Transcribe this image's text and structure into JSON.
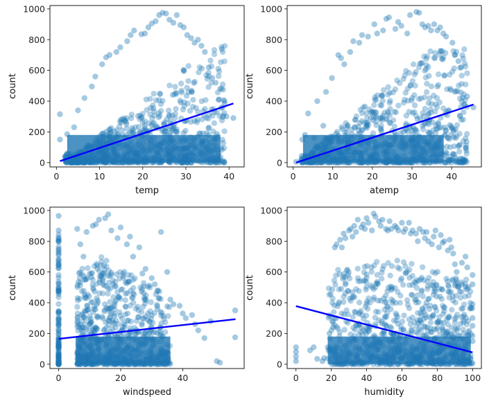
{
  "chart_data": [
    {
      "type": "scatter",
      "xlabel": "temp",
      "ylabel": "count",
      "xlim": [
        -1.5,
        43.5
      ],
      "ylim": [
        -28,
        1022
      ],
      "xticks": [
        0,
        10,
        20,
        30,
        40
      ],
      "yticks": [
        0,
        200,
        400,
        600,
        800,
        1000
      ],
      "point_color": "#1f77b4",
      "regression_color": "#0000ff",
      "regression": {
        "x": [
          0.82,
          41.0
        ],
        "y": [
          10,
          385
        ]
      },
      "points": {
        "x": [
          0.82,
          0.82,
          2.5,
          2.5,
          4.1,
          5.0,
          6.5,
          8.2,
          9.0,
          10.6,
          11.5,
          12.3,
          13.9,
          14.8,
          16.4,
          17.2,
          18.0,
          19.7,
          20.5,
          21.3,
          22.1,
          23.0,
          23.8,
          24.6,
          25.4,
          26.2,
          27.1,
          27.9,
          28.7,
          29.5,
          30.3,
          31.2,
          32.0,
          32.8,
          33.6,
          34.4,
          35.3,
          36.1,
          36.9,
          37.7,
          38.5,
          39.4,
          41.0,
          24.6,
          26.2,
          28.7,
          30.3,
          21.3,
          19.7,
          15.6,
          13.1,
          10.7,
          9.8,
          8.2,
          7.4,
          5.7,
          4.9,
          3.3
        ],
        "y": [
          150,
          315,
          60,
          185,
          230,
          340,
          420,
          495,
          560,
          640,
          685,
          700,
          720,
          750,
          790,
          830,
          860,
          835,
          840,
          880,
          905,
          920,
          960,
          975,
          970,
          930,
          910,
          960,
          895,
          880,
          830,
          810,
          780,
          800,
          760,
          720,
          620,
          550,
          520,
          410,
          360,
          300,
          290,
          15,
          5,
          10,
          20,
          12,
          8,
          3,
          6,
          4,
          10,
          2,
          7,
          5,
          9,
          3
        ]
      }
    },
    {
      "type": "scatter",
      "xlabel": "atemp",
      "ylabel": "count",
      "xlim": [
        -1.5,
        47.5
      ],
      "ylim": [
        -28,
        1022
      ],
      "xticks": [
        0,
        10,
        20,
        30,
        40
      ],
      "yticks": [
        0,
        200,
        400,
        600,
        800,
        1000
      ],
      "point_color": "#1f77b4",
      "regression_color": "#0000ff",
      "regression": {
        "x": [
          0.76,
          45.5
        ],
        "y": [
          0,
          378
        ]
      },
      "points": {
        "x": [
          0.76,
          2.3,
          3.0,
          3.8,
          5.3,
          6.1,
          7.6,
          8.3,
          9.8,
          11.4,
          12.1,
          12.9,
          14.4,
          15.2,
          16.7,
          17.4,
          18.9,
          20.5,
          21.2,
          22.7,
          23.5,
          24.2,
          25.8,
          26.5,
          27.3,
          28.8,
          29.5,
          31.1,
          31.8,
          32.6,
          33.3,
          34.1,
          34.8,
          35.6,
          36.4,
          37.1,
          37.9,
          38.6,
          40.2,
          40.9,
          41.7,
          42.4,
          43.9,
          45.5,
          31.1,
          33.3,
          29.5,
          24.2
        ],
        "y": [
          5,
          150,
          180,
          320,
          160,
          400,
          240,
          460,
          550,
          700,
          680,
          640,
          720,
          790,
          780,
          830,
          820,
          900,
          840,
          860,
          935,
          945,
          870,
          915,
          890,
          840,
          960,
          980,
          975,
          900,
          880,
          890,
          860,
          900,
          860,
          880,
          840,
          820,
          780,
          700,
          660,
          620,
          430,
          360,
          10,
          20,
          5,
          8
        ]
      }
    },
    {
      "type": "scatter",
      "xlabel": "windspeed",
      "ylabel": "count",
      "xlim": [
        -2.8,
        59.8
      ],
      "ylim": [
        -28,
        1022
      ],
      "xticks": [
        0,
        20,
        40
      ],
      "yticks": [
        0,
        200,
        400,
        600,
        800,
        1000
      ],
      "point_color": "#1f77b4",
      "regression_color": "#0000ff",
      "regression": {
        "x": [
          0.0,
          57.0
        ],
        "y": [
          165,
          293
        ]
      },
      "points": {
        "x": [
          0,
          0,
          0,
          0,
          0,
          0,
          0,
          0,
          0,
          0,
          6.0,
          7.0,
          8.0,
          9.0,
          11.0,
          12.0,
          13.0,
          15.0,
          16.0,
          17.0,
          19.0,
          20.0,
          22.0,
          23.0,
          24.0,
          26.0,
          27.0,
          28.0,
          30.0,
          31.0,
          32.0,
          33.0,
          35.0,
          36.0,
          37.0,
          39.0,
          40.0,
          41.0,
          43.0,
          44.0,
          45.0,
          47.0,
          49.0,
          51.0,
          52.0,
          56.9,
          56.9,
          0,
          11.0,
          19.0
        ],
        "y": [
          0,
          100,
          200,
          330,
          500,
          640,
          730,
          800,
          870,
          965,
          880,
          780,
          700,
          860,
          900,
          910,
          940,
          950,
          975,
          870,
          820,
          890,
          780,
          830,
          700,
          760,
          590,
          620,
          560,
          520,
          480,
          860,
          600,
          420,
          390,
          380,
          330,
          300,
          320,
          260,
          220,
          170,
          280,
          20,
          10,
          350,
          175,
          20,
          10,
          5
        ]
      }
    },
    {
      "type": "scatter",
      "xlabel": "humidity",
      "ylabel": "count",
      "xlim": [
        -5,
        105
      ],
      "ylim": [
        -28,
        1022
      ],
      "xticks": [
        0,
        20,
        40,
        60,
        80,
        100
      ],
      "yticks": [
        0,
        200,
        400,
        600,
        800,
        1000
      ],
      "point_color": "#1f77b4",
      "regression_color": "#0000ff",
      "regression": {
        "x": [
          0,
          100
        ],
        "y": [
          378,
          77
        ]
      },
      "points": {
        "x": [
          0,
          0,
          0,
          0,
          8,
          10,
          12,
          15,
          16,
          18,
          19,
          21,
          22,
          23,
          25,
          26,
          27,
          28,
          30,
          31,
          32,
          33,
          34,
          35,
          37,
          38,
          39,
          40,
          41,
          43,
          44,
          45,
          47,
          48,
          49,
          51,
          52,
          53,
          54,
          56,
          57,
          58,
          60,
          61,
          62,
          64,
          65,
          66,
          68,
          69,
          70,
          72,
          73,
          74,
          75,
          77,
          78,
          79,
          81,
          82,
          83,
          84,
          86,
          87,
          88,
          89,
          90,
          91,
          92,
          94,
          96,
          97,
          100,
          100,
          100,
          100,
          100,
          100
        ],
        "y": [
          20,
          50,
          80,
          110,
          90,
          110,
          35,
          20,
          40,
          110,
          200,
          240,
          760,
          780,
          810,
          760,
          850,
          820,
          870,
          880,
          830,
          900,
          860,
          940,
          890,
          910,
          880,
          950,
          920,
          870,
          980,
          960,
          930,
          900,
          940,
          880,
          870,
          930,
          880,
          900,
          890,
          870,
          920,
          860,
          880,
          920,
          850,
          870,
          850,
          800,
          880,
          860,
          820,
          860,
          800,
          780,
          830,
          870,
          760,
          840,
          790,
          800,
          740,
          810,
          760,
          720,
          650,
          600,
          500,
          660,
          700,
          630,
          580,
          520,
          390,
          300,
          250,
          150
        ]
      }
    }
  ]
}
